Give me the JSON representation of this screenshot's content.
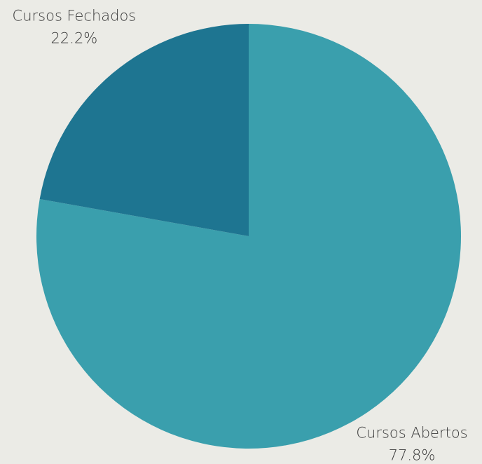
{
  "chart_data": {
    "type": "pie",
    "categories": [
      "Cursos Abertos",
      "Cursos Fechados"
    ],
    "values": [
      77.8,
      22.2
    ],
    "value_labels": [
      "77.8%",
      "22.2%"
    ],
    "colors": [
      "#3a9fad",
      "#1e7591"
    ]
  }
}
